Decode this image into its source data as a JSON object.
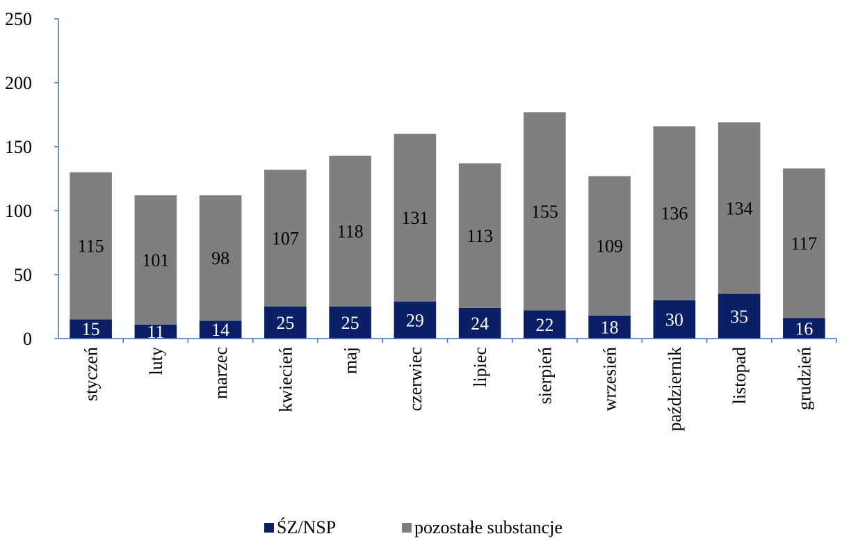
{
  "chart_data": {
    "type": "bar",
    "stacked": true,
    "categories": [
      "styczeń",
      "luty",
      "marzec",
      "kwiecień",
      "maj",
      "czerwiec",
      "lipiec",
      "sierpień",
      "wrzesień",
      "październik",
      "listopad",
      "grudzień"
    ],
    "series": [
      {
        "name": "ŚZ/NSP",
        "color": "#0a1f66",
        "label_color": "#ffffff",
        "values": [
          15,
          11,
          14,
          25,
          25,
          29,
          24,
          22,
          18,
          30,
          35,
          16
        ]
      },
      {
        "name": "pozostałe substancje",
        "color": "#7f7f7f",
        "label_color": "#000000",
        "values": [
          115,
          101,
          98,
          107,
          118,
          131,
          113,
          155,
          109,
          136,
          134,
          117
        ]
      }
    ],
    "ylim": [
      0,
      250
    ],
    "yticks": [
      0,
      50,
      100,
      150,
      200,
      250
    ],
    "axis_color": "#4472c4",
    "grid": false,
    "legend_position": "bottom"
  }
}
